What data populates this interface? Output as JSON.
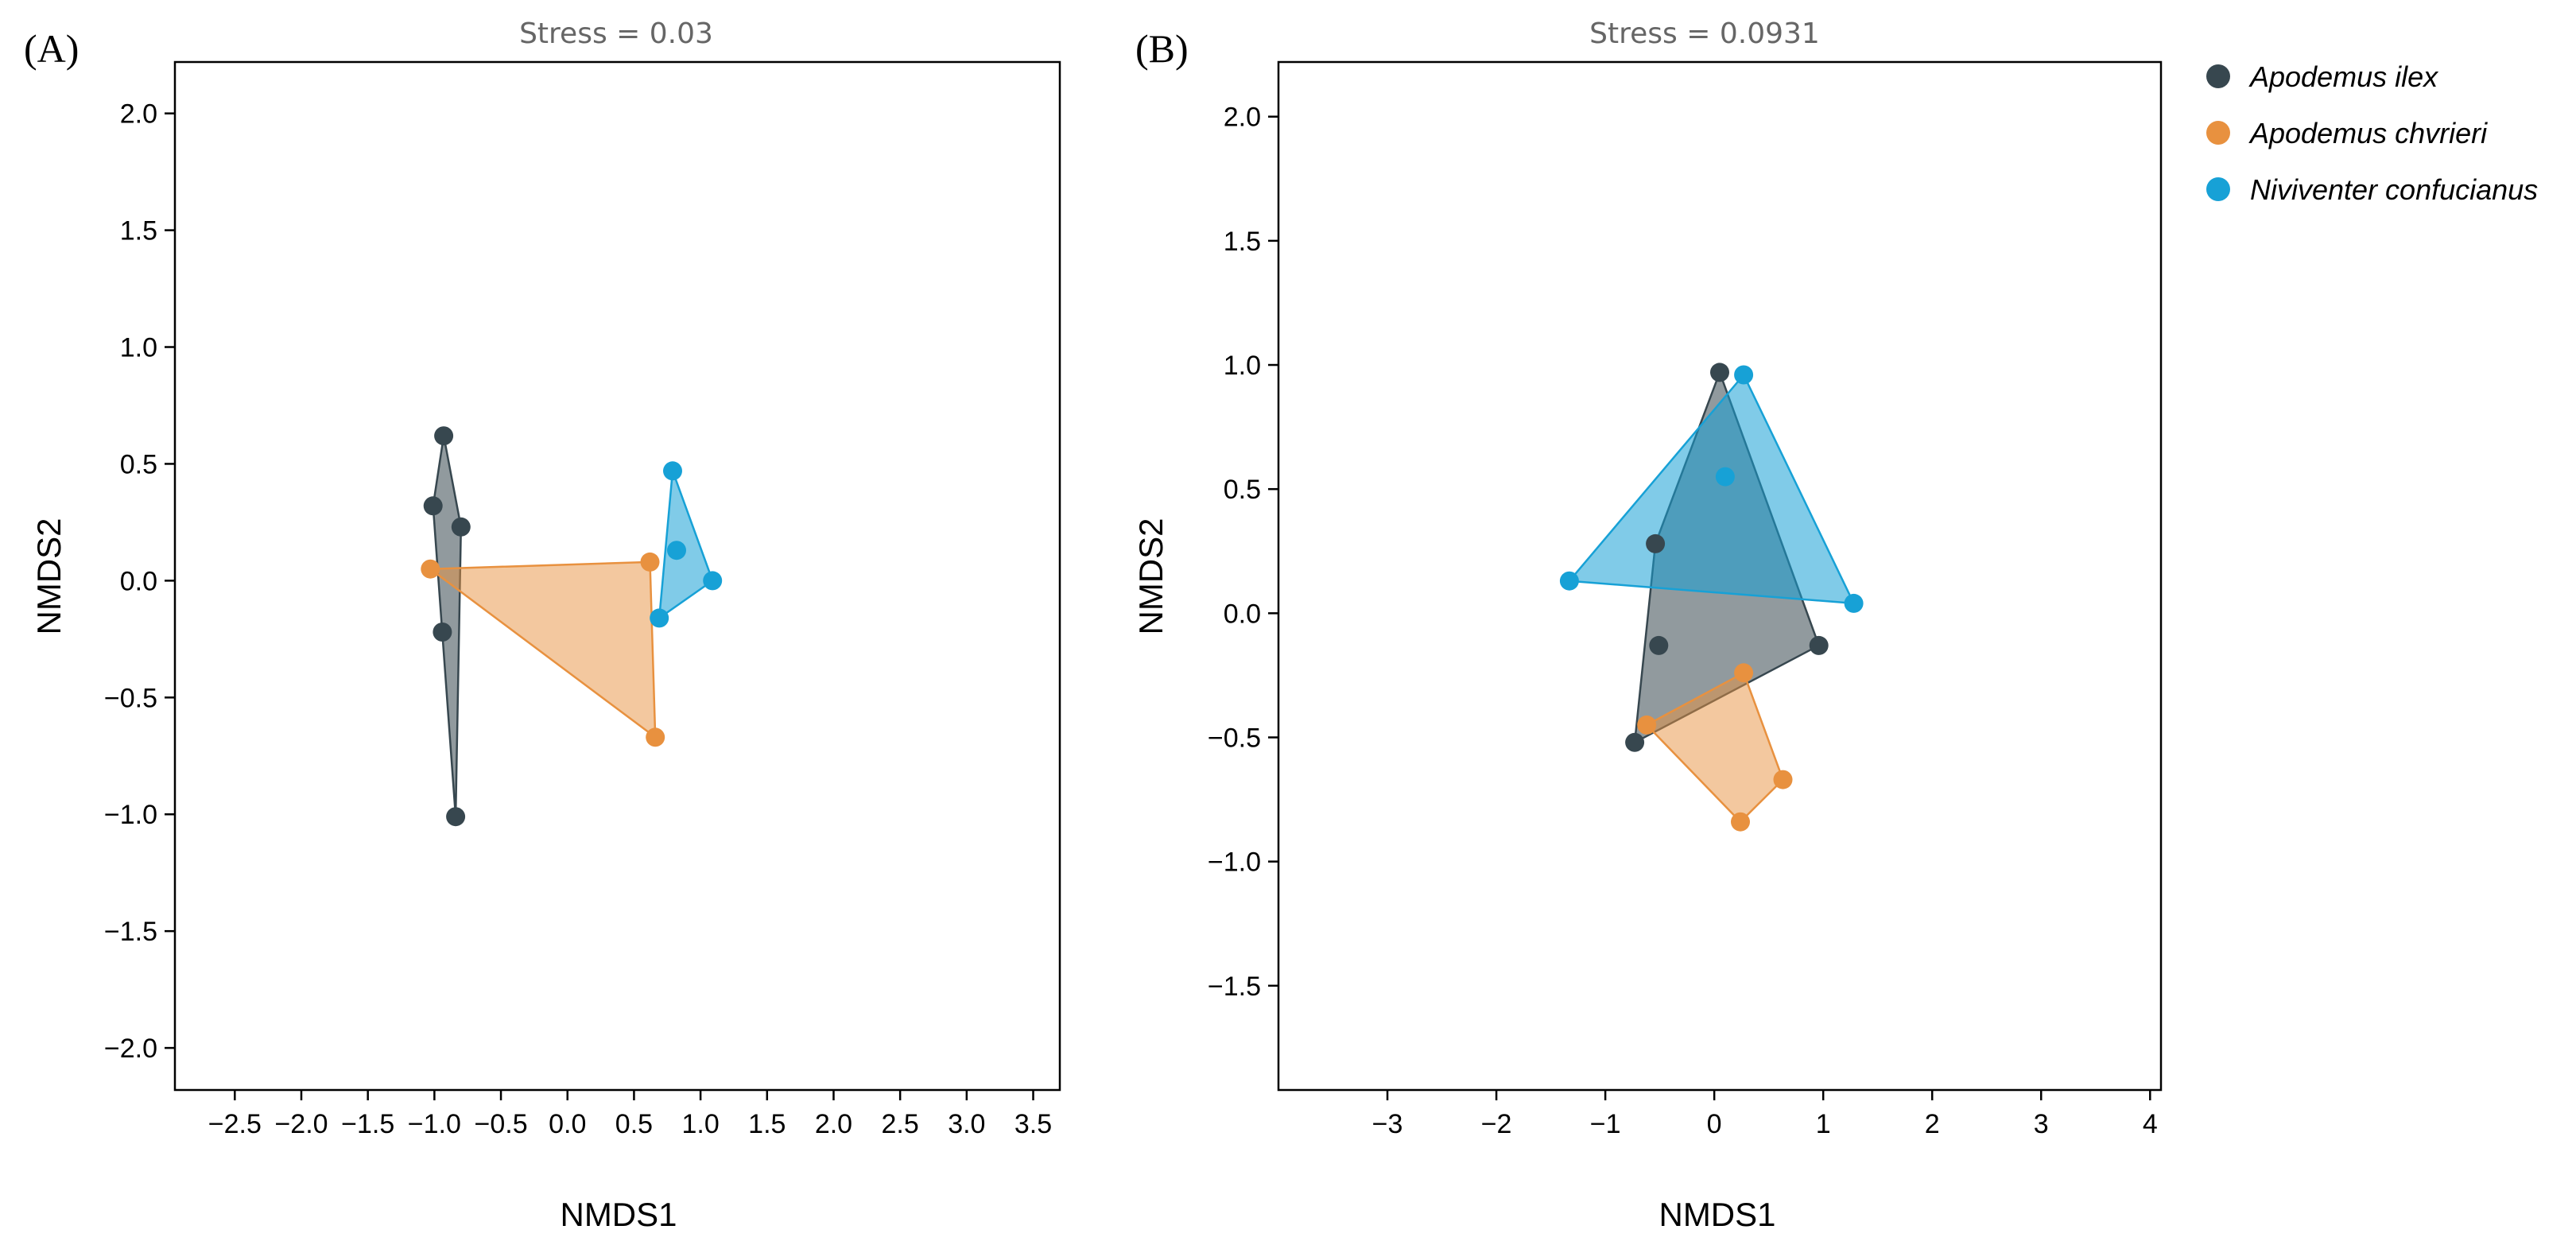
{
  "chart_data": [
    {
      "type": "scatter",
      "panel_label": "(A)",
      "title": "Stress = 0.03",
      "xlabel": "NMDS1",
      "ylabel": "NMDS2",
      "xlim": [
        -2.95,
        3.7
      ],
      "ylim": [
        -2.18,
        2.22
      ],
      "xticks": [
        -2.5,
        -2.0,
        -1.5,
        -1.0,
        -0.5,
        0.0,
        0.5,
        1.0,
        1.5,
        2.0,
        2.5,
        3.0,
        3.5
      ],
      "yticks": [
        -2.0,
        -1.5,
        -1.0,
        -0.5,
        0.0,
        0.5,
        1.0,
        1.5,
        2.0
      ],
      "series": [
        {
          "name": "Apodemus ilex",
          "points": [
            [
              -0.93,
              0.62
            ],
            [
              -1.01,
              0.32
            ],
            [
              -0.8,
              0.23
            ],
            [
              -0.94,
              -0.22
            ],
            [
              -0.84,
              -1.01
            ]
          ]
        },
        {
          "name": "Apodemus chvrieri",
          "points": [
            [
              -1.03,
              0.05
            ],
            [
              0.62,
              0.08
            ],
            [
              0.66,
              -0.67
            ]
          ]
        },
        {
          "name": "Niviventer confucianus",
          "points": [
            [
              0.79,
              0.47
            ],
            [
              0.82,
              0.13
            ],
            [
              1.09,
              0.0
            ],
            [
              0.69,
              -0.16
            ]
          ]
        }
      ]
    },
    {
      "type": "scatter",
      "panel_label": "(B)",
      "title": "Stress = 0.0931",
      "xlabel": "NMDS1",
      "ylabel": "NMDS2",
      "xlim": [
        -4.0,
        4.1
      ],
      "ylim": [
        -1.92,
        2.22
      ],
      "xticks": [
        -3,
        -2,
        -1,
        0,
        1,
        2,
        3,
        4
      ],
      "yticks": [
        -1.5,
        -1.0,
        -0.5,
        0.0,
        0.5,
        1.0,
        1.5,
        2.0
      ],
      "series": [
        {
          "name": "Apodemus ilex",
          "points": [
            [
              0.05,
              0.97
            ],
            [
              -0.54,
              0.28
            ],
            [
              -0.51,
              -0.13
            ],
            [
              0.96,
              -0.13
            ],
            [
              -0.73,
              -0.52
            ]
          ]
        },
        {
          "name": "Apodemus chvrieri",
          "points": [
            [
              0.27,
              -0.24
            ],
            [
              -0.62,
              -0.45
            ],
            [
              0.63,
              -0.67
            ],
            [
              0.24,
              -0.84
            ]
          ]
        },
        {
          "name": "Niviventer confucianus",
          "points": [
            [
              0.27,
              0.96
            ],
            [
              0.1,
              0.55
            ],
            [
              -1.33,
              0.13
            ],
            [
              1.28,
              0.04
            ]
          ]
        }
      ]
    }
  ],
  "legend": {
    "placement": "top-right",
    "items": [
      {
        "name": "Apodemus ilex",
        "color": "#37474f"
      },
      {
        "name": "Apodemus chvrieri",
        "color": "#e8913f"
      },
      {
        "name": "Niviventer confucianus",
        "color": "#17a1d6"
      }
    ]
  },
  "colors": {
    "Apodemus ilex": "#37474f",
    "Apodemus chvrieri": "#e8913f",
    "Niviventer confucianus": "#17a1d6"
  }
}
